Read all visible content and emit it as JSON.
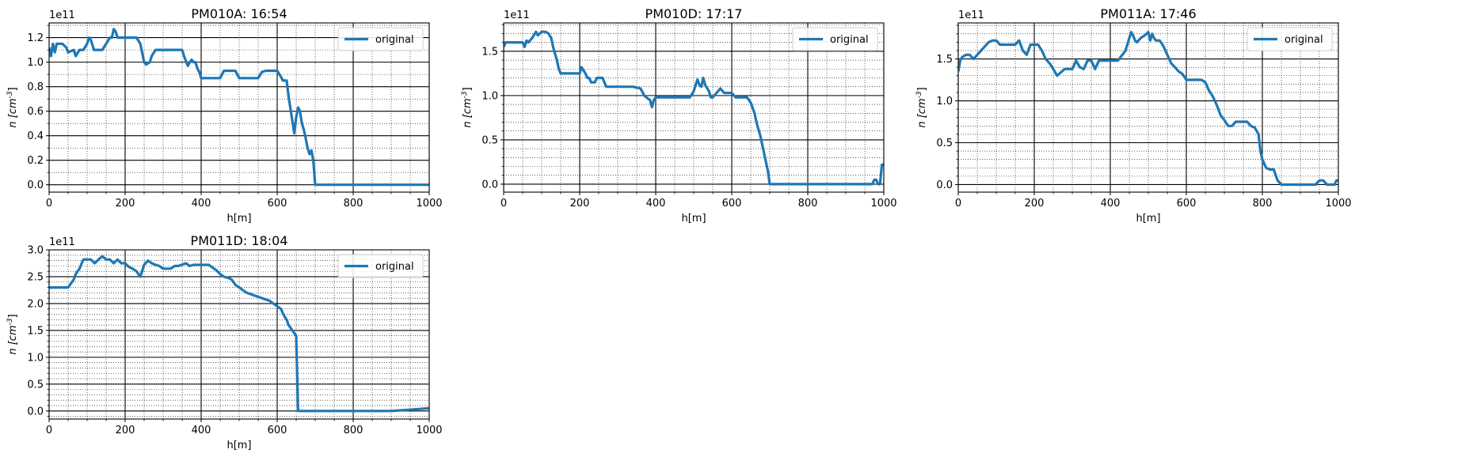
{
  "figure": {
    "columns": 3,
    "background": "#ffffff"
  },
  "chart_data": [
    {
      "type": "line",
      "title": "PM010A: 16:54",
      "xlabel": "h[m]",
      "ylabel": "n [cm^-3]",
      "y_offset_label": "1e11",
      "xlim": [
        0,
        1000
      ],
      "ylim": [
        -0.06,
        1.32
      ],
      "x_ticks": [
        0,
        200,
        400,
        600,
        800,
        1000
      ],
      "x_tick_labels": [
        "0",
        "200",
        "400",
        "600",
        "800",
        "1000"
      ],
      "y_ticks": [
        0.0,
        0.2,
        0.4,
        0.6,
        0.8,
        1.0,
        1.2
      ],
      "y_tick_labels": [
        "0.0",
        "0.2",
        "0.4",
        "0.6",
        "0.8",
        "1.0",
        "1.2"
      ],
      "x_minor_step": 50,
      "y_minor_step": 0.1,
      "grid": true,
      "legend": "upper-right",
      "series": [
        {
          "name": "original",
          "color": "#1f77b4",
          "x": [
            0,
            5,
            10,
            15,
            20,
            25,
            35,
            45,
            50,
            65,
            70,
            80,
            90,
            100,
            105,
            110,
            118,
            125,
            140,
            150,
            160,
            165,
            170,
            175,
            180,
            190,
            200,
            215,
            230,
            240,
            250,
            255,
            265,
            270,
            280,
            300,
            320,
            340,
            350,
            355,
            365,
            370,
            375,
            380,
            385,
            390,
            395,
            400,
            410,
            420,
            440,
            450,
            460,
            470,
            480,
            490,
            500,
            510,
            530,
            550,
            560,
            570,
            580,
            590,
            600,
            610,
            615,
            620,
            625,
            630,
            635,
            640,
            645,
            650,
            655,
            660,
            665,
            670,
            675,
            680,
            685,
            690,
            695,
            700,
            705,
            710,
            720,
            800,
            900,
            1000
          ],
          "y": [
            1.12,
            1.05,
            1.15,
            1.08,
            1.15,
            1.15,
            1.15,
            1.12,
            1.08,
            1.1,
            1.05,
            1.1,
            1.1,
            1.15,
            1.2,
            1.18,
            1.1,
            1.1,
            1.1,
            1.15,
            1.2,
            1.2,
            1.27,
            1.25,
            1.2,
            1.2,
            1.2,
            1.2,
            1.2,
            1.15,
            1.0,
            0.98,
            1.0,
            1.05,
            1.1,
            1.1,
            1.1,
            1.1,
            1.1,
            1.05,
            0.97,
            1.0,
            1.02,
            1.0,
            1.0,
            0.95,
            0.92,
            0.87,
            0.87,
            0.87,
            0.87,
            0.87,
            0.93,
            0.93,
            0.93,
            0.93,
            0.87,
            0.87,
            0.87,
            0.87,
            0.92,
            0.93,
            0.93,
            0.93,
            0.93,
            0.88,
            0.85,
            0.85,
            0.85,
            0.72,
            0.62,
            0.52,
            0.42,
            0.55,
            0.63,
            0.6,
            0.5,
            0.45,
            0.38,
            0.3,
            0.25,
            0.28,
            0.2,
            0.0,
            0.0,
            0.0,
            0.0,
            0.0,
            0.0,
            0.0
          ]
        }
      ]
    },
    {
      "type": "line",
      "title": "PM010D: 17:17",
      "xlabel": "h[m]",
      "ylabel": "n [cm^-3]",
      "y_offset_label": "1e11",
      "xlim": [
        0,
        1000
      ],
      "ylim": [
        -0.09,
        1.82
      ],
      "x_ticks": [
        0,
        200,
        400,
        600,
        800,
        1000
      ],
      "x_tick_labels": [
        "0",
        "200",
        "400",
        "600",
        "800",
        "1000"
      ],
      "y_ticks": [
        0.0,
        0.5,
        1.0,
        1.5
      ],
      "y_tick_labels": [
        "0.0",
        "0.5",
        "1.0",
        "1.5"
      ],
      "x_minor_step": 50,
      "y_minor_step": 0.1,
      "grid": true,
      "legend": "upper-right",
      "series": [
        {
          "name": "original",
          "color": "#1f77b4",
          "x": [
            0,
            5,
            10,
            30,
            50,
            55,
            60,
            65,
            75,
            85,
            90,
            100,
            110,
            118,
            125,
            130,
            140,
            145,
            150,
            160,
            170,
            180,
            190,
            200,
            205,
            215,
            220,
            225,
            230,
            240,
            245,
            250,
            260,
            270,
            280,
            300,
            320,
            340,
            360,
            370,
            375,
            385,
            390,
            395,
            400,
            410,
            420,
            440,
            460,
            480,
            490,
            500,
            505,
            510,
            515,
            520,
            525,
            530,
            540,
            545,
            550,
            560,
            570,
            580,
            590,
            600,
            610,
            620,
            630,
            640,
            650,
            660,
            665,
            670,
            675,
            680,
            685,
            690,
            695,
            700,
            705,
            710,
            800,
            900,
            970,
            975,
            980,
            985,
            990,
            995,
            1000
          ],
          "y": [
            1.55,
            1.6,
            1.6,
            1.6,
            1.6,
            1.55,
            1.62,
            1.6,
            1.65,
            1.72,
            1.68,
            1.72,
            1.72,
            1.7,
            1.65,
            1.55,
            1.4,
            1.3,
            1.25,
            1.25,
            1.25,
            1.25,
            1.25,
            1.25,
            1.32,
            1.25,
            1.2,
            1.2,
            1.15,
            1.15,
            1.2,
            1.2,
            1.2,
            1.1,
            1.1,
            1.1,
            1.1,
            1.1,
            1.08,
            1.0,
            0.98,
            0.95,
            0.87,
            0.95,
            0.98,
            0.98,
            0.98,
            0.98,
            0.98,
            0.98,
            0.98,
            1.05,
            1.12,
            1.18,
            1.12,
            1.1,
            1.2,
            1.12,
            1.05,
            0.98,
            0.98,
            1.03,
            1.08,
            1.03,
            1.03,
            1.03,
            0.98,
            0.98,
            0.98,
            0.98,
            0.92,
            0.8,
            0.7,
            0.62,
            0.55,
            0.45,
            0.35,
            0.25,
            0.15,
            0.0,
            0.0,
            0.0,
            0.0,
            0.0,
            0.0,
            0.05,
            0.05,
            0.0,
            0.0,
            0.22,
            0.22
          ]
        }
      ]
    },
    {
      "type": "line",
      "title": "PM011A: 17:46",
      "xlabel": "h[m]",
      "ylabel": "n [cm^-3]",
      "y_offset_label": "1e11",
      "xlim": [
        0,
        1000
      ],
      "ylim": [
        -0.09,
        1.93
      ],
      "x_ticks": [
        0,
        200,
        400,
        600,
        800,
        1000
      ],
      "x_tick_labels": [
        "0",
        "200",
        "400",
        "600",
        "800",
        "1000"
      ],
      "y_ticks": [
        0.0,
        0.5,
        1.0,
        1.5
      ],
      "y_tick_labels": [
        "0.0",
        "0.5",
        "1.0",
        "1.5"
      ],
      "x_minor_step": 50,
      "y_minor_step": 0.1,
      "grid": true,
      "legend": "upper-right",
      "series": [
        {
          "name": "original",
          "color": "#1f77b4",
          "x": [
            0,
            5,
            10,
            20,
            30,
            40,
            50,
            60,
            70,
            80,
            90,
            100,
            110,
            120,
            150,
            160,
            170,
            180,
            190,
            200,
            210,
            220,
            230,
            240,
            250,
            260,
            280,
            300,
            310,
            320,
            330,
            340,
            350,
            360,
            370,
            390,
            420,
            440,
            450,
            455,
            460,
            465,
            470,
            480,
            490,
            500,
            505,
            510,
            515,
            520,
            530,
            540,
            550,
            560,
            570,
            580,
            590,
            600,
            620,
            640,
            650,
            660,
            670,
            680,
            690,
            700,
            710,
            720,
            730,
            740,
            760,
            770,
            780,
            790,
            795,
            800,
            810,
            820,
            830,
            840,
            850,
            900,
            940,
            950,
            960,
            970,
            990,
            995,
            1000
          ],
          "y": [
            1.35,
            1.48,
            1.52,
            1.55,
            1.55,
            1.5,
            1.55,
            1.6,
            1.65,
            1.7,
            1.72,
            1.72,
            1.67,
            1.67,
            1.67,
            1.72,
            1.6,
            1.55,
            1.67,
            1.67,
            1.67,
            1.6,
            1.5,
            1.45,
            1.38,
            1.3,
            1.38,
            1.38,
            1.48,
            1.4,
            1.38,
            1.48,
            1.48,
            1.38,
            1.48,
            1.48,
            1.48,
            1.6,
            1.75,
            1.82,
            1.78,
            1.72,
            1.7,
            1.75,
            1.78,
            1.82,
            1.72,
            1.8,
            1.75,
            1.72,
            1.72,
            1.65,
            1.55,
            1.45,
            1.4,
            1.35,
            1.32,
            1.25,
            1.25,
            1.25,
            1.22,
            1.12,
            1.05,
            0.95,
            0.83,
            0.77,
            0.7,
            0.7,
            0.75,
            0.75,
            0.75,
            0.7,
            0.68,
            0.6,
            0.4,
            0.3,
            0.2,
            0.18,
            0.18,
            0.05,
            0.0,
            0.0,
            0.0,
            0.05,
            0.05,
            0.0,
            0.0,
            0.05,
            0.05
          ]
        }
      ]
    },
    {
      "type": "line",
      "title": "PM011D: 18:04",
      "xlabel": "h[m]",
      "ylabel": "n [cm^-3]",
      "y_offset_label": "1e11",
      "xlim": [
        0,
        1000
      ],
      "ylim": [
        -0.15,
        3.0
      ],
      "x_ticks": [
        0,
        200,
        400,
        600,
        800,
        1000
      ],
      "x_tick_labels": [
        "0",
        "200",
        "400",
        "600",
        "800",
        "1000"
      ],
      "y_ticks": [
        0.0,
        0.5,
        1.0,
        1.5,
        2.0,
        2.5,
        3.0
      ],
      "y_tick_labels": [
        "0.0",
        "0.5",
        "1.0",
        "1.5",
        "2.0",
        "2.5",
        "3.0"
      ],
      "x_minor_step": 50,
      "y_minor_step": 0.1,
      "grid": true,
      "legend": "upper-right",
      "series": [
        {
          "name": "original",
          "color": "#1f77b4",
          "x": [
            0,
            50,
            55,
            60,
            65,
            70,
            80,
            90,
            100,
            110,
            120,
            130,
            140,
            150,
            160,
            170,
            180,
            190,
            200,
            210,
            220,
            230,
            240,
            250,
            260,
            270,
            280,
            290,
            300,
            310,
            320,
            330,
            340,
            360,
            370,
            380,
            400,
            420,
            440,
            450,
            460,
            470,
            480,
            490,
            500,
            510,
            520,
            540,
            560,
            580,
            590,
            600,
            610,
            615,
            620,
            625,
            630,
            635,
            640,
            645,
            650,
            655,
            660,
            700,
            800,
            900,
            1000
          ],
          "y": [
            2.3,
            2.3,
            2.35,
            2.4,
            2.45,
            2.55,
            2.65,
            2.82,
            2.82,
            2.82,
            2.75,
            2.82,
            2.88,
            2.82,
            2.82,
            2.75,
            2.82,
            2.75,
            2.75,
            2.68,
            2.65,
            2.6,
            2.5,
            2.72,
            2.8,
            2.75,
            2.72,
            2.7,
            2.65,
            2.65,
            2.65,
            2.7,
            2.7,
            2.75,
            2.7,
            2.72,
            2.72,
            2.72,
            2.62,
            2.55,
            2.5,
            2.48,
            2.45,
            2.35,
            2.3,
            2.25,
            2.2,
            2.15,
            2.1,
            2.05,
            2.0,
            1.95,
            1.9,
            1.82,
            1.75,
            1.7,
            1.6,
            1.55,
            1.5,
            1.45,
            1.4,
            0.0,
            0.0,
            0.0,
            0.0,
            0.0,
            0.05
          ]
        }
      ]
    }
  ]
}
